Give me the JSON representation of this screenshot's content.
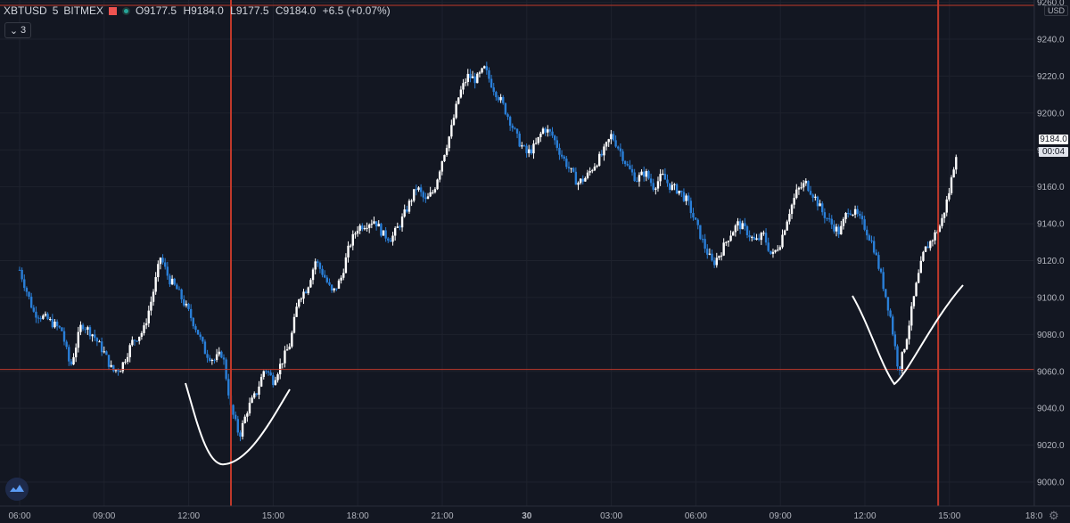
{
  "legend": {
    "symbol": "XBTUSD",
    "interval": "5",
    "exchange": "BITMEX",
    "open": "O9177.5",
    "high": "H9184.0",
    "low": "L9177.5",
    "close": "C9184.0",
    "change": "+6.5 (+0.07%)"
  },
  "collapse_button": {
    "label": "3",
    "icon": "chevron-down-icon"
  },
  "price_scale": {
    "currency": "USD",
    "last_price": "9184.0",
    "countdown": "00:04"
  },
  "colors": {
    "background": "#131722",
    "up_candle": "#ffffff",
    "down_candle": "#2a7fd8",
    "marker_line": "#c0392b",
    "grid": "#1e222d",
    "axis_text": "#b2b5be"
  },
  "chart_data": {
    "type": "candlestick",
    "ylim": [
      8990,
      9262
    ],
    "y_ticks": [
      9000,
      9020,
      9040,
      9060,
      9080,
      9100,
      9120,
      9140,
      9160,
      9180,
      9200,
      9220,
      9240,
      9260
    ],
    "y_tick_labels": [
      "9000.0",
      "9020.0",
      "9040.0",
      "9060.0",
      "9080.0",
      "9100.0",
      "9120.0",
      "9140.0",
      "9160.0",
      "9180.0",
      "9200.0",
      "9220.0",
      "9240.0",
      "9260.0"
    ],
    "x_tick_labels": [
      "06:00",
      "09:00",
      "12:00",
      "15:00",
      "18:00",
      "21:00",
      "30",
      "03:00",
      "06:00",
      "09:00",
      "12:00",
      "15:00",
      "18:0"
    ],
    "x_tick_hours": [
      6,
      9,
      12,
      15,
      18,
      21,
      24,
      27,
      30,
      33,
      36,
      39,
      42
    ],
    "x_range_hours": [
      6,
      43.2
    ],
    "horizontal_line": 9061,
    "vertical_markers_hours": [
      13.5,
      38.6
    ],
    "last_hour": 39.3,
    "close_path": [
      [
        6.0,
        9115
      ],
      [
        6.5,
        9092
      ],
      [
        7.0,
        9088
      ],
      [
        7.5,
        9082
      ],
      [
        7.8,
        9062
      ],
      [
        8.2,
        9086
      ],
      [
        8.6,
        9080
      ],
      [
        9.0,
        9070
      ],
      [
        9.3,
        9060
      ],
      [
        9.6,
        9062
      ],
      [
        10.0,
        9076
      ],
      [
        10.4,
        9082
      ],
      [
        10.7,
        9100
      ],
      [
        11.0,
        9122
      ],
      [
        11.3,
        9110
      ],
      [
        11.6,
        9104
      ],
      [
        12.0,
        9092
      ],
      [
        12.3,
        9082
      ],
      [
        12.6,
        9070
      ],
      [
        12.9,
        9066
      ],
      [
        13.2,
        9070
      ],
      [
        13.5,
        9040
      ],
      [
        13.8,
        9025
      ],
      [
        14.1,
        9040
      ],
      [
        14.4,
        9048
      ],
      [
        14.7,
        9062
      ],
      [
        15.0,
        9055
      ],
      [
        15.3,
        9065
      ],
      [
        15.6,
        9075
      ],
      [
        15.9,
        9100
      ],
      [
        16.2,
        9105
      ],
      [
        16.5,
        9120
      ],
      [
        16.8,
        9112
      ],
      [
        17.1,
        9102
      ],
      [
        17.4,
        9110
      ],
      [
        17.7,
        9128
      ],
      [
        18.0,
        9138
      ],
      [
        18.3,
        9140
      ],
      [
        18.6,
        9142
      ],
      [
        18.9,
        9134
      ],
      [
        19.2,
        9132
      ],
      [
        19.5,
        9140
      ],
      [
        19.8,
        9150
      ],
      [
        20.1,
        9160
      ],
      [
        20.4,
        9152
      ],
      [
        20.7,
        9158
      ],
      [
        21.0,
        9175
      ],
      [
        21.3,
        9190
      ],
      [
        21.6,
        9210
      ],
      [
        21.9,
        9220
      ],
      [
        22.2,
        9218
      ],
      [
        22.5,
        9224
      ],
      [
        22.8,
        9214
      ],
      [
        23.1,
        9206
      ],
      [
        23.4,
        9196
      ],
      [
        23.7,
        9185
      ],
      [
        24.0,
        9178
      ],
      [
        24.3,
        9182
      ],
      [
        24.6,
        9192
      ],
      [
        24.9,
        9188
      ],
      [
        25.2,
        9178
      ],
      [
        25.5,
        9170
      ],
      [
        25.8,
        9162
      ],
      [
        26.1,
        9165
      ],
      [
        26.4,
        9172
      ],
      [
        26.7,
        9178
      ],
      [
        27.0,
        9188
      ],
      [
        27.3,
        9180
      ],
      [
        27.6,
        9170
      ],
      [
        27.9,
        9164
      ],
      [
        28.2,
        9168
      ],
      [
        28.5,
        9160
      ],
      [
        28.8,
        9166
      ],
      [
        29.1,
        9160
      ],
      [
        29.4,
        9158
      ],
      [
        29.7,
        9152
      ],
      [
        30.0,
        9140
      ],
      [
        30.3,
        9128
      ],
      [
        30.6,
        9118
      ],
      [
        30.9,
        9125
      ],
      [
        31.2,
        9134
      ],
      [
        31.5,
        9140
      ],
      [
        31.8,
        9136
      ],
      [
        32.1,
        9130
      ],
      [
        32.4,
        9134
      ],
      [
        32.7,
        9122
      ],
      [
        33.0,
        9130
      ],
      [
        33.3,
        9146
      ],
      [
        33.6,
        9158
      ],
      [
        33.9,
        9162
      ],
      [
        34.2,
        9155
      ],
      [
        34.5,
        9146
      ],
      [
        34.8,
        9140
      ],
      [
        35.1,
        9135
      ],
      [
        35.4,
        9148
      ],
      [
        35.7,
        9145
      ],
      [
        36.0,
        9138
      ],
      [
        36.3,
        9128
      ],
      [
        36.6,
        9110
      ],
      [
        36.9,
        9090
      ],
      [
        37.2,
        9060
      ],
      [
        37.5,
        9080
      ],
      [
        37.8,
        9105
      ],
      [
        38.1,
        9125
      ],
      [
        38.4,
        9132
      ],
      [
        38.7,
        9140
      ],
      [
        39.0,
        9158
      ],
      [
        39.3,
        9184
      ]
    ]
  }
}
